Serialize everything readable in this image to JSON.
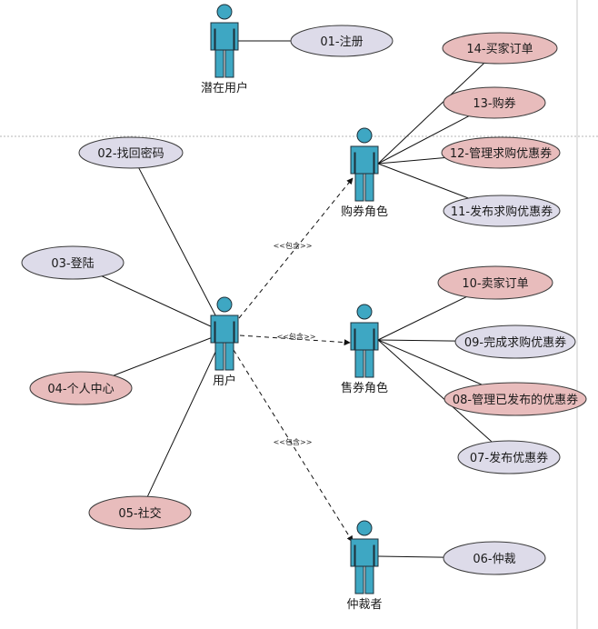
{
  "colors": {
    "actor_fill": "#3ea7c3",
    "actor_stroke": "#1d2f38",
    "usecase_lavender": "#dddbe9",
    "usecase_pink": "#e8bcbc",
    "usecase_stroke": "#3a3a3a",
    "line": "#111111",
    "separator": "#b5b5b5"
  },
  "stereotype": "<<包含>>",
  "actors": [
    {
      "id": "potential",
      "label": "潜在用户"
    },
    {
      "id": "user",
      "label": "用户"
    },
    {
      "id": "buyer",
      "label": "购券角色"
    },
    {
      "id": "seller",
      "label": "售券角色"
    },
    {
      "id": "arbiter",
      "label": "仲裁者"
    }
  ],
  "use_cases": [
    {
      "id": "uc01",
      "label": "01-注册",
      "tone": "lavender"
    },
    {
      "id": "uc02",
      "label": "02-找回密码",
      "tone": "lavender"
    },
    {
      "id": "uc03",
      "label": "03-登陆",
      "tone": "lavender"
    },
    {
      "id": "uc04",
      "label": "04-个人中心",
      "tone": "pink"
    },
    {
      "id": "uc05",
      "label": "05-社交",
      "tone": "pink"
    },
    {
      "id": "uc06",
      "label": "06-仲裁",
      "tone": "lavender"
    },
    {
      "id": "uc07",
      "label": "07-发布优惠券",
      "tone": "lavender"
    },
    {
      "id": "uc08",
      "label": "08-管理已发布的优惠券",
      "tone": "pink"
    },
    {
      "id": "uc09",
      "label": "09-完成求购优惠券",
      "tone": "lavender"
    },
    {
      "id": "uc10",
      "label": "10-卖家订单",
      "tone": "pink"
    },
    {
      "id": "uc11",
      "label": "11-发布求购优惠券",
      "tone": "lavender"
    },
    {
      "id": "uc12",
      "label": "12-管理求购优惠券",
      "tone": "pink"
    },
    {
      "id": "uc13",
      "label": "13-购券",
      "tone": "pink"
    },
    {
      "id": "uc14",
      "label": "14-买家订单",
      "tone": "pink"
    }
  ],
  "associations": [
    [
      "potential",
      "uc01"
    ],
    [
      "user",
      "uc02"
    ],
    [
      "user",
      "uc03"
    ],
    [
      "user",
      "uc04"
    ],
    [
      "user",
      "uc05"
    ],
    [
      "buyer",
      "uc11"
    ],
    [
      "buyer",
      "uc12"
    ],
    [
      "buyer",
      "uc13"
    ],
    [
      "buyer",
      "uc14"
    ],
    [
      "seller",
      "uc07"
    ],
    [
      "seller",
      "uc08"
    ],
    [
      "seller",
      "uc09"
    ],
    [
      "seller",
      "uc10"
    ],
    [
      "arbiter",
      "uc06"
    ]
  ],
  "includes": [
    [
      "user",
      "buyer"
    ],
    [
      "user",
      "seller"
    ],
    [
      "user",
      "arbiter"
    ]
  ]
}
